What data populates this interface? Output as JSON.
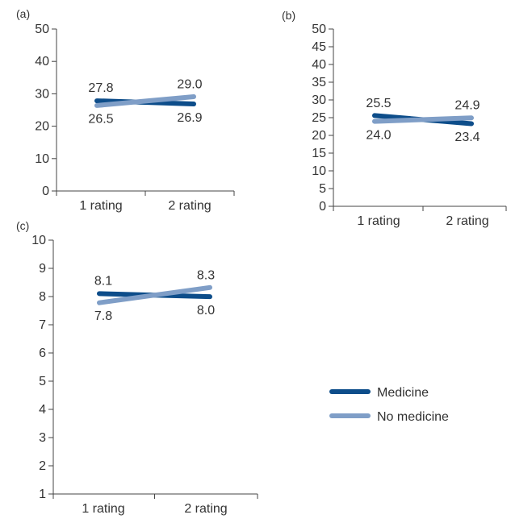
{
  "colors": {
    "medicine": "#0d4d8a",
    "no_medicine": "#7f9ec7",
    "axis": "#444444",
    "text": "#333333"
  },
  "legend": {
    "items": [
      {
        "label": "Medicine",
        "color": "#0d4d8a"
      },
      {
        "label": "No medicine",
        "color": "#7f9ec7"
      }
    ]
  },
  "chart_data": [
    {
      "panel": "(a)",
      "type": "line",
      "categories": [
        "1 rating",
        "2 rating"
      ],
      "ylim": [
        0,
        50
      ],
      "yticks": [
        0,
        10,
        20,
        30,
        40,
        50
      ],
      "series": [
        {
          "name": "Medicine",
          "values": [
            27.8,
            26.9
          ],
          "labels": [
            "27.8",
            "26.9"
          ]
        },
        {
          "name": "No medicine",
          "values": [
            26.5,
            29.0
          ],
          "labels": [
            "26.5",
            "29.0"
          ]
        }
      ]
    },
    {
      "panel": "(b)",
      "type": "line",
      "categories": [
        "1 rating",
        "2 rating"
      ],
      "ylim": [
        0,
        50
      ],
      "yticks": [
        0,
        5,
        10,
        15,
        20,
        25,
        30,
        35,
        40,
        45,
        50
      ],
      "series": [
        {
          "name": "Medicine",
          "values": [
            25.5,
            23.4
          ],
          "labels": [
            "25.5",
            "23.4"
          ]
        },
        {
          "name": "No medicine",
          "values": [
            24.0,
            24.9
          ],
          "labels": [
            "24.0",
            "24.9"
          ]
        }
      ]
    },
    {
      "panel": "(c)",
      "type": "line",
      "categories": [
        "1 rating",
        "2 rating"
      ],
      "ylim": [
        1,
        10
      ],
      "yticks": [
        1,
        2,
        3,
        4,
        5,
        6,
        7,
        8,
        9,
        10
      ],
      "series": [
        {
          "name": "Medicine",
          "values": [
            8.1,
            8.0
          ],
          "labels": [
            "8.1",
            "8.0"
          ]
        },
        {
          "name": "No medicine",
          "values": [
            7.8,
            8.3
          ],
          "labels": [
            "7.8",
            "8.3"
          ]
        }
      ]
    }
  ]
}
